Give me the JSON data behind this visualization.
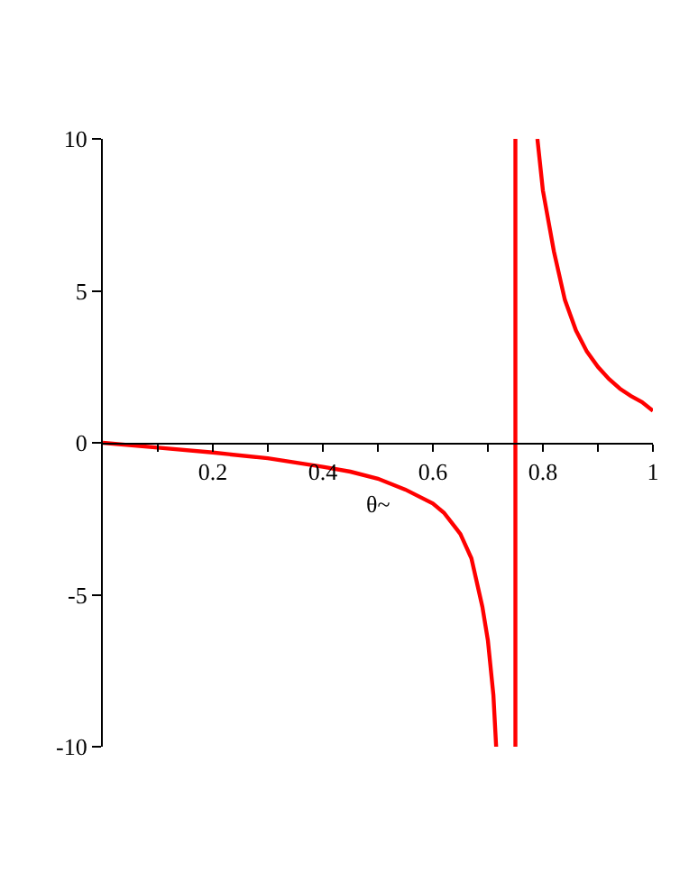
{
  "chart_data": {
    "type": "line",
    "xlabel": "θ~",
    "x": [
      0,
      0.1,
      0.2,
      0.3,
      0.4,
      0.45,
      0.5,
      0.55,
      0.6,
      0.62,
      0.65,
      0.67,
      0.69,
      0.7,
      0.71,
      0.715,
      null,
      0.75,
      0.75,
      null,
      0.79,
      0.8,
      0.82,
      0.84,
      0.86,
      0.88,
      0.9,
      0.92,
      0.94,
      0.96,
      0.98,
      1
    ],
    "series": [
      {
        "color": "#ff0000",
        "values": [
          0,
          -0.16,
          -0.32,
          -0.51,
          -0.79,
          -0.95,
          -1.18,
          -1.54,
          -2.0,
          -2.3,
          -3.0,
          -3.8,
          -5.4,
          -6.5,
          -8.3,
          -10,
          null,
          -10,
          10,
          null,
          10,
          8.3,
          6.3,
          4.7,
          3.7,
          3.0,
          2.5,
          2.1,
          1.78,
          1.54,
          1.34,
          1.05
        ]
      }
    ],
    "xlim": [
      0,
      1
    ],
    "ylim": [
      -10,
      10
    ],
    "xticks": [
      {
        "value": 0.1,
        "label": null
      },
      0.2,
      {
        "value": 0.3,
        "label": null
      },
      0.4,
      {
        "value": 0.5,
        "label": null
      },
      0.6,
      {
        "value": 0.7,
        "label": null
      },
      0.8,
      {
        "value": 0.9,
        "label": null
      },
      1
    ],
    "yticks": [
      -10,
      -5,
      0,
      5,
      10
    ],
    "marker": "none",
    "line_style": "solid"
  }
}
